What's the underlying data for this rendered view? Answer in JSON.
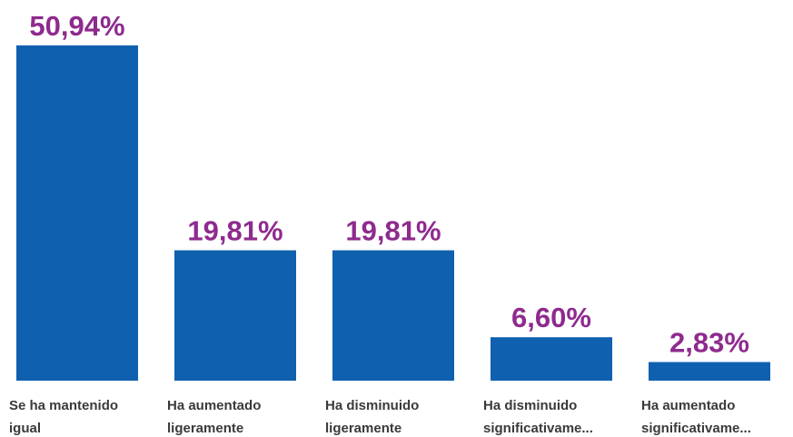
{
  "chart_data": {
    "type": "bar",
    "categories": [
      [
        "Se ha mantenido",
        "igual"
      ],
      [
        "Ha aumentado",
        "ligeramente"
      ],
      [
        "Ha disminuido",
        "ligeramente"
      ],
      [
        "Ha disminuido",
        "significativame..."
      ],
      [
        "Ha aumentado",
        "significativame..."
      ]
    ],
    "values": [
      50.94,
      19.81,
      19.81,
      6.6,
      2.83
    ],
    "value_labels": [
      "50,94%",
      "19,81%",
      "19,81%",
      "6,60%",
      "2,83%"
    ],
    "color": "#1060b0"
  }
}
